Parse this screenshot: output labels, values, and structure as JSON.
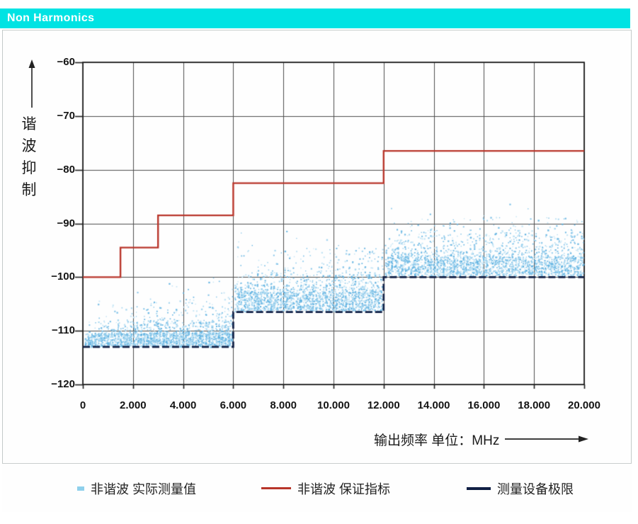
{
  "title": "Non Harmonics",
  "titlebar": {
    "bg": "#00e3e3",
    "text_color": "#ffffff"
  },
  "panel": {
    "bg": "#fefefe",
    "border": "#c4cac9"
  },
  "legend": {
    "items": [
      {
        "label": "非谐波 实际测量值",
        "marker": "scatter-dot",
        "color": "#8fd0ec"
      },
      {
        "label": "非谐波 保证指标",
        "marker": "line",
        "color": "#b8352a"
      },
      {
        "label": "测量设备极限",
        "marker": "line",
        "color": "#101f44"
      }
    ]
  },
  "chart_data": {
    "type": "scatter",
    "title": "Non Harmonics",
    "xlabel": "输出频率 单位：MHz",
    "ylabel": "谐波抑制",
    "xlim": [
      0,
      20
    ],
    "ylim": [
      -120,
      -60
    ],
    "grid": true,
    "grid_color": "#4d4d4d",
    "border_color": "#1c1c1c",
    "x_ticks": [
      {
        "v": 0,
        "label": "0"
      },
      {
        "v": 2,
        "label": "2.000"
      },
      {
        "v": 4,
        "label": "4.000"
      },
      {
        "v": 6,
        "label": "6.000"
      },
      {
        "v": 8,
        "label": "8.000"
      },
      {
        "v": 10,
        "label": "10.000"
      },
      {
        "v": 12,
        "label": "12.000"
      },
      {
        "v": 14,
        "label": "14.000"
      },
      {
        "v": 16,
        "label": "16.000"
      },
      {
        "v": 18,
        "label": "18.000"
      },
      {
        "v": 20,
        "label": "20.000"
      }
    ],
    "y_ticks": [
      {
        "v": -60,
        "label": "−60"
      },
      {
        "v": -70,
        "label": "−70"
      },
      {
        "v": -80,
        "label": "−80"
      },
      {
        "v": -90,
        "label": "−90"
      },
      {
        "v": -100,
        "label": "−100"
      },
      {
        "v": -110,
        "label": "−110"
      },
      {
        "v": -120,
        "label": "−120"
      }
    ],
    "series": [
      {
        "name": "非谐波 实际测量值",
        "type": "scatter",
        "palette": [
          "#bfe2f4",
          "#9bd2ee",
          "#76bde6",
          "#5cb0e0"
        ],
        "bands": [
          {
            "x0": 0.08,
            "x1": 5.95,
            "layers": [
              {
                "y": [
                  -112.9,
                  -110.4
                ],
                "n": 1500,
                "xbias": 0,
                "uniform": true
              },
              {
                "y": [
                  -110.4,
                  -108.2
                ],
                "n": 420,
                "xbias": 0.5
              },
              {
                "y": [
                  -108.2,
                  -104.5
                ],
                "n": 140,
                "xbias": 0.9
              },
              {
                "y": [
                  -104.5,
                  -99.5
                ],
                "n": 28,
                "xbias": 1.6
              }
            ]
          },
          {
            "x0": 6.05,
            "x1": 11.95,
            "layers": [
              {
                "y": [
                  -106.3,
                  -102.8
                ],
                "n": 1300,
                "xbias": 0,
                "uniform": true
              },
              {
                "y": [
                  -102.8,
                  -99.5
                ],
                "n": 500,
                "xbias": 0
              },
              {
                "y": [
                  -99.5,
                  -94.5
                ],
                "n": 170,
                "xbias": 0.3
              },
              {
                "y": [
                  -94.5,
                  -91.0
                ],
                "n": 10,
                "xbias": 0
              }
            ]
          },
          {
            "x0": 12.05,
            "x1": 19.95,
            "layers": [
              {
                "y": [
                  -99.7,
                  -96.2
                ],
                "n": 1600,
                "xbias": 0,
                "uniform": true
              },
              {
                "y": [
                  -96.2,
                  -92.3
                ],
                "n": 550,
                "xbias": 0
              },
              {
                "y": [
                  -92.3,
                  -88.8
                ],
                "n": 150,
                "xbias": 0.2
              },
              {
                "y": [
                  -88.8,
                  -86.2
                ],
                "n": 7,
                "xbias": 0
              }
            ]
          }
        ]
      },
      {
        "name": "非谐波 保证指标",
        "type": "step",
        "color": "#b8352a",
        "width": 2.4,
        "points": [
          [
            0,
            -100
          ],
          [
            1.5,
            -100
          ],
          [
            1.5,
            -94.5
          ],
          [
            3,
            -94.5
          ],
          [
            3,
            -88.5
          ],
          [
            6,
            -88.5
          ],
          [
            6,
            -82.5
          ],
          [
            12,
            -82.5
          ],
          [
            12,
            -76.5
          ],
          [
            20,
            -76.5
          ]
        ]
      },
      {
        "name": "测量设备极限",
        "type": "step",
        "color": "#101f44",
        "width": 2.7,
        "dash": [
          10,
          4
        ],
        "points": [
          [
            0,
            -113
          ],
          [
            6,
            -113
          ],
          [
            6,
            -106.5
          ],
          [
            12,
            -106.5
          ],
          [
            12,
            -100
          ],
          [
            20,
            -100
          ]
        ]
      }
    ]
  }
}
